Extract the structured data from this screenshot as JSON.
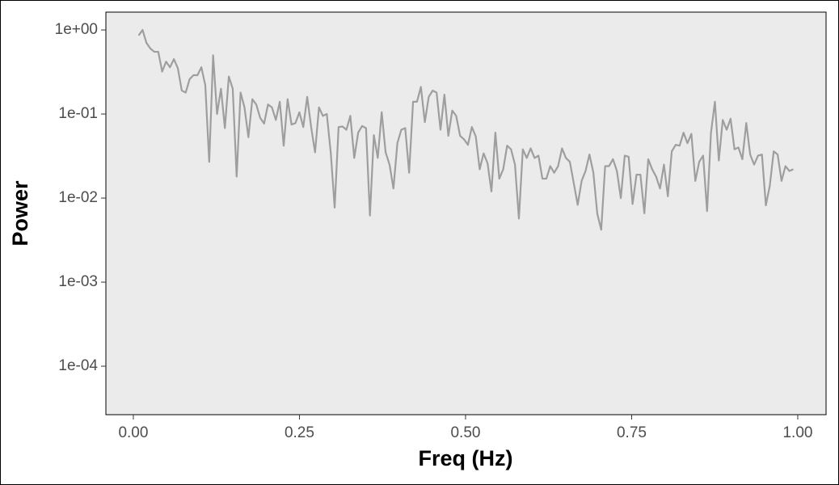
{
  "chart_data": {
    "type": "line",
    "x_label": "Freq (Hz)",
    "y_label": "Power",
    "color": "#9e9e9e",
    "log_y": true,
    "xlim": [
      -0.0413,
      1.0426
    ],
    "ylim": [
      2.65e-05,
      1.63
    ],
    "xticks": [
      {
        "value": 0,
        "label": "0.00"
      },
      {
        "value": 0.25,
        "label": "0.25"
      },
      {
        "value": 0.5,
        "label": "0.50"
      },
      {
        "value": 0.75,
        "label": "0.75"
      },
      {
        "value": 1,
        "label": "1.00"
      }
    ],
    "yticks": [
      {
        "value": 1,
        "label": "1e+00"
      },
      {
        "value": 0.1,
        "label": "1e-01"
      },
      {
        "value": 0.01,
        "label": "1e-02"
      },
      {
        "value": 0.001,
        "label": "1e-03"
      },
      {
        "value": 0.0001,
        "label": "1e-04"
      }
    ],
    "x": [
      0.008,
      0.0139,
      0.0198,
      0.0257,
      0.0316,
      0.0375,
      0.0434,
      0.0493,
      0.0552,
      0.0611,
      0.067,
      0.0729,
      0.0788,
      0.0847,
      0.0906,
      0.0965,
      0.1024,
      0.1083,
      0.1142,
      0.1201,
      0.126,
      0.1319,
      0.1378,
      0.1437,
      0.1496,
      0.1555,
      0.1614,
      0.1673,
      0.1732,
      0.1791,
      0.185,
      0.1909,
      0.1968,
      0.2027,
      0.2086,
      0.2145,
      0.2204,
      0.2263,
      0.2322,
      0.2381,
      0.244,
      0.2499,
      0.2558,
      0.2617,
      0.2676,
      0.2735,
      0.2794,
      0.2853,
      0.2912,
      0.2971,
      0.303,
      0.3089,
      0.3148,
      0.3207,
      0.3266,
      0.3325,
      0.3384,
      0.3443,
      0.3502,
      0.3561,
      0.362,
      0.3679,
      0.3738,
      0.3797,
      0.3856,
      0.3915,
      0.3974,
      0.4033,
      0.4092,
      0.4151,
      0.421,
      0.4269,
      0.4328,
      0.4387,
      0.4446,
      0.4505,
      0.4564,
      0.4623,
      0.4682,
      0.4741,
      0.48,
      0.4859,
      0.4918,
      0.4977,
      0.5036,
      0.5095,
      0.5154,
      0.5213,
      0.5272,
      0.5331,
      0.539,
      0.5449,
      0.5508,
      0.5567,
      0.5626,
      0.5685,
      0.5744,
      0.5803,
      0.5862,
      0.5921,
      0.598,
      0.6039,
      0.6098,
      0.6157,
      0.6216,
      0.6275,
      0.6334,
      0.6393,
      0.6452,
      0.6511,
      0.657,
      0.6629,
      0.6688,
      0.6747,
      0.6806,
      0.6865,
      0.6924,
      0.6983,
      0.7042,
      0.7101,
      0.716,
      0.7219,
      0.7278,
      0.7337,
      0.7396,
      0.7455,
      0.7514,
      0.7573,
      0.7632,
      0.7691,
      0.775,
      0.7809,
      0.7868,
      0.7927,
      0.7986,
      0.8045,
      0.8104,
      0.8163,
      0.8222,
      0.8281,
      0.834,
      0.8399,
      0.8458,
      0.8517,
      0.8576,
      0.8635,
      0.8694,
      0.8753,
      0.8812,
      0.8871,
      0.893,
      0.8989,
      0.9048,
      0.9107,
      0.9166,
      0.9225,
      0.9284,
      0.9343,
      0.9402,
      0.9461,
      0.952,
      0.9579,
      0.9638,
      0.9697,
      0.9756,
      0.9815,
      0.9874,
      0.9933
    ],
    "values": [
      0.86,
      1.0,
      0.7,
      0.6,
      0.55,
      0.55,
      0.32,
      0.42,
      0.36,
      0.45,
      0.35,
      0.19,
      0.18,
      0.26,
      0.29,
      0.29,
      0.36,
      0.22,
      0.027,
      0.5,
      0.1,
      0.2,
      0.068,
      0.28,
      0.2,
      0.018,
      0.18,
      0.12,
      0.053,
      0.15,
      0.13,
      0.09,
      0.077,
      0.13,
      0.12,
      0.085,
      0.14,
      0.042,
      0.15,
      0.075,
      0.078,
      0.105,
      0.07,
      0.16,
      0.07,
      0.035,
      0.12,
      0.095,
      0.1,
      0.035,
      0.0077,
      0.07,
      0.071,
      0.065,
      0.095,
      0.03,
      0.06,
      0.072,
      0.068,
      0.0062,
      0.056,
      0.03,
      0.105,
      0.035,
      0.025,
      0.013,
      0.045,
      0.065,
      0.068,
      0.02,
      0.14,
      0.14,
      0.21,
      0.08,
      0.16,
      0.19,
      0.18,
      0.065,
      0.17,
      0.055,
      0.11,
      0.095,
      0.055,
      0.05,
      0.043,
      0.07,
      0.054,
      0.022,
      0.034,
      0.026,
      0.012,
      0.06,
      0.017,
      0.022,
      0.042,
      0.038,
      0.025,
      0.0057,
      0.038,
      0.03,
      0.039,
      0.03,
      0.032,
      0.017,
      0.017,
      0.024,
      0.02,
      0.024,
      0.039,
      0.03,
      0.027,
      0.015,
      0.0083,
      0.016,
      0.021,
      0.033,
      0.02,
      0.0065,
      0.0042,
      0.024,
      0.024,
      0.029,
      0.021,
      0.01,
      0.032,
      0.031,
      0.0085,
      0.019,
      0.019,
      0.0066,
      0.029,
      0.022,
      0.018,
      0.013,
      0.025,
      0.0105,
      0.036,
      0.043,
      0.042,
      0.06,
      0.045,
      0.058,
      0.016,
      0.027,
      0.032,
      0.007,
      0.06,
      0.14,
      0.028,
      0.085,
      0.065,
      0.088,
      0.038,
      0.04,
      0.029,
      0.078,
      0.033,
      0.025,
      0.032,
      0.033,
      0.0082,
      0.014,
      0.036,
      0.033,
      0.016,
      0.024,
      0.021,
      0.022
    ]
  }
}
